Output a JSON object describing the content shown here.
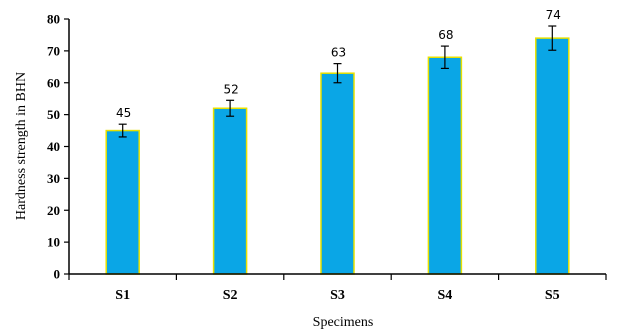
{
  "chart_data": {
    "type": "bar",
    "categories": [
      "S1",
      "S2",
      "S3",
      "S4",
      "S5"
    ],
    "values": [
      45,
      52,
      63,
      68,
      74
    ],
    "errors": [
      2,
      2.5,
      3,
      3.5,
      3.8
    ],
    "data_labels": [
      "45",
      "52",
      "63",
      "68",
      "74"
    ],
    "xlabel": "Specimens",
    "ylabel": "Hardness strength in BHN",
    "ylim": [
      0,
      80
    ],
    "yticks": [
      "0",
      "10",
      "20",
      "30",
      "40",
      "50",
      "60",
      "70",
      "80"
    ],
    "grid": false,
    "colors": {
      "bar_fill": "#0aa6e6",
      "bar_edge": "#e8e000",
      "axis": "#000000"
    }
  }
}
